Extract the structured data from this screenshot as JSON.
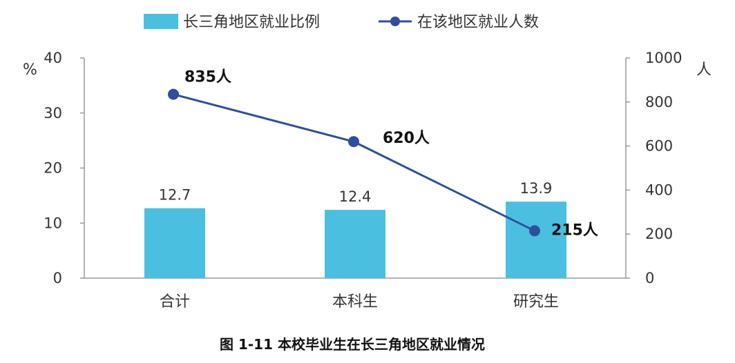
{
  "chart_data": {
    "type": "bar+line",
    "categories": [
      "合计",
      "本科生",
      "研究生"
    ],
    "series": [
      {
        "name": "长三角地区就业比例",
        "type": "bar",
        "axis": "left",
        "values": [
          12.7,
          12.4,
          13.9
        ],
        "labels": [
          "12.7",
          "12.4",
          "13.9"
        ],
        "color": "#4bbfdf"
      },
      {
        "name": "在该地区就业人数",
        "type": "line",
        "axis": "right",
        "values": [
          835,
          620,
          215
        ],
        "labels": [
          "835人",
          "620人",
          "215人"
        ],
        "color": "#2e4f9e"
      }
    ],
    "y_left": {
      "unit": "%",
      "ylim": [
        0,
        40
      ],
      "ticks": [
        "0",
        "10",
        "20",
        "30",
        "40"
      ]
    },
    "y_right": {
      "unit": "人",
      "ylim": [
        0,
        1000
      ],
      "ticks": [
        "0",
        "200",
        "400",
        "600",
        "800",
        "1000"
      ]
    },
    "legend_position": "top",
    "grid": false,
    "caption": "图 1-11 本校毕业生在长三角地区就业情况"
  }
}
